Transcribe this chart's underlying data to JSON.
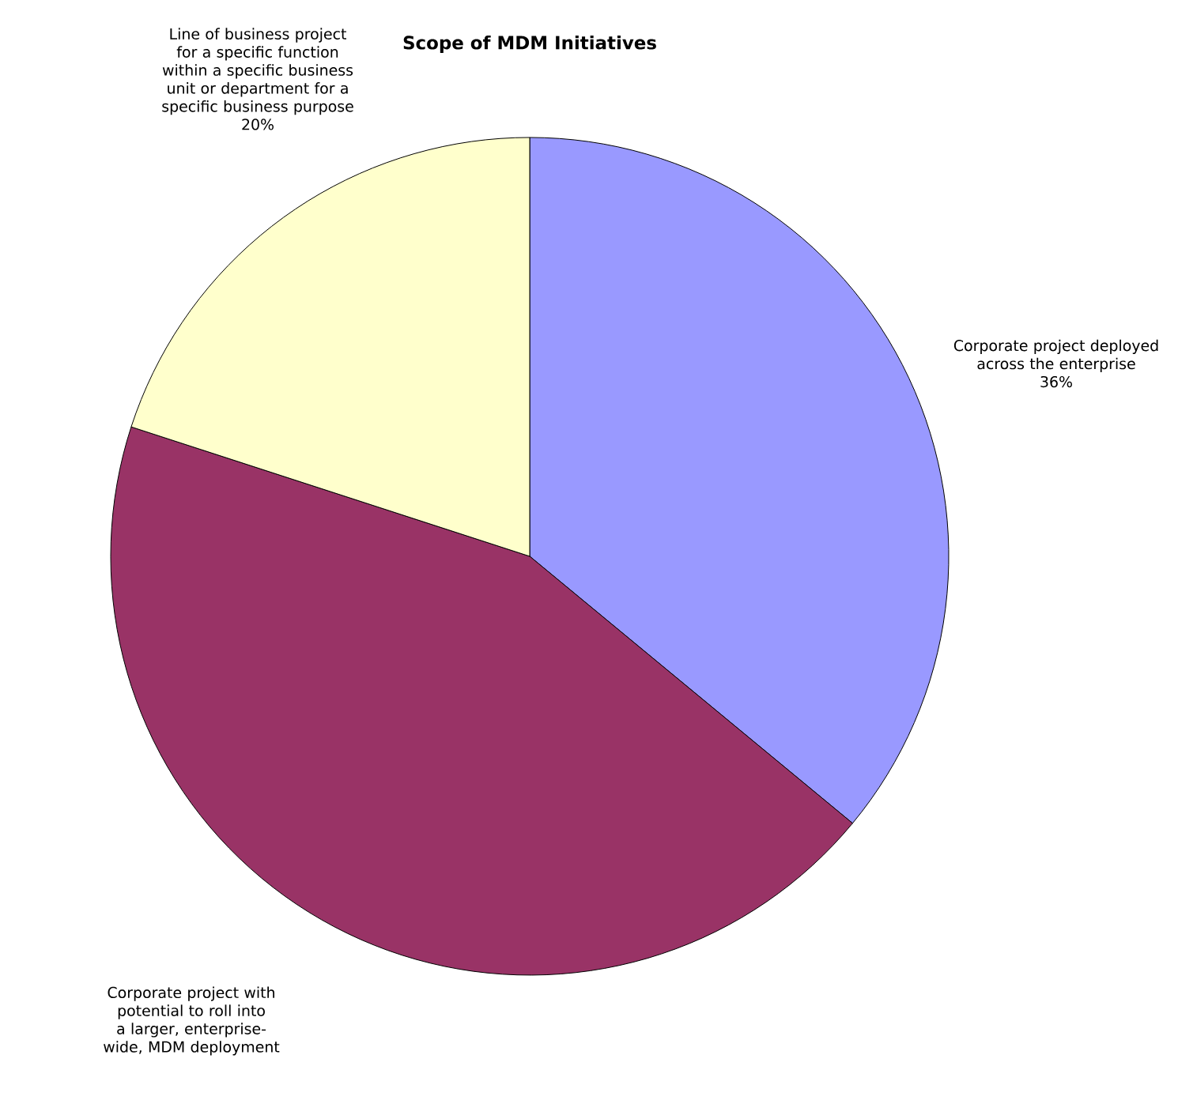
{
  "chart_data": {
    "type": "pie",
    "title": "Scope of MDM Initiatives",
    "categories": [
      "Corporate project deployed across the enterprise",
      "Corporate project with potential to roll into a larger, enterprise-wide, MDM deployment",
      "Line of business project for a specific function within a specific business unit or department for a specific business purpose"
    ],
    "values": [
      36,
      44,
      20
    ],
    "value_labels": [
      "36%",
      null,
      "20%"
    ],
    "colors": [
      "#9999ff",
      "#993366",
      "#ffffcc"
    ]
  }
}
